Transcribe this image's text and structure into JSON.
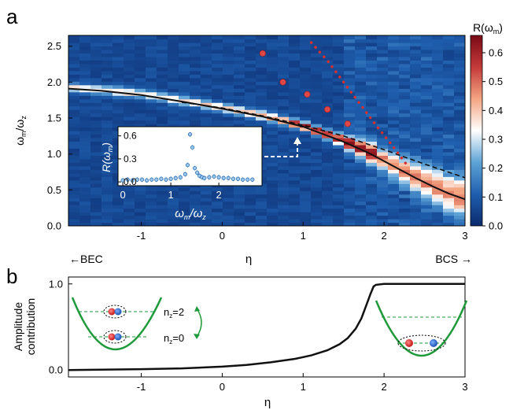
{
  "chart_data": [
    {
      "type": "heatmap",
      "panel": "a",
      "xlabel": "η",
      "ylabel_main": "ω",
      "ylabel_sub": "m",
      "ylabel_den_main": "ω",
      "ylabel_den_sub": "z",
      "x_ticks": [
        "-1",
        "0",
        "1",
        "2",
        "3"
      ],
      "x_tick_values": [
        -1,
        0,
        1,
        2,
        3
      ],
      "y_ticks": [
        "0.0",
        "0.5",
        "1.0",
        "1.5",
        "2.0",
        "2.5"
      ],
      "y_tick_values": [
        0,
        0.5,
        1.0,
        1.5,
        2.0,
        2.5
      ],
      "xlim": [
        -1.9,
        3.0
      ],
      "ylim": [
        0,
        2.65
      ],
      "left_arrow_label": "←BEC",
      "right_arrow_label": "BCS →",
      "colorbar": {
        "label_main": "R(ω",
        "label_sub": "m",
        "label_close": ")",
        "ticks": [
          "0.0",
          "0.1",
          "0.2",
          "0.3",
          "0.4",
          "0.5",
          "0.6"
        ],
        "tick_values": [
          0,
          0.1,
          0.2,
          0.3,
          0.4,
          0.5,
          0.6
        ],
        "range": [
          0,
          0.66
        ],
        "colors": [
          "#0b2a6e",
          "#1f5fae",
          "#5ea3d6",
          "#ffffff",
          "#f4a582",
          "#c43a3a",
          "#7a0a16"
        ]
      },
      "solid_curve": {
        "x": [
          -1.9,
          -1.5,
          -1.0,
          -0.5,
          0.0,
          0.5,
          1.0,
          1.5,
          1.8,
          2.0,
          2.2,
          2.4,
          2.6,
          2.8,
          3.0
        ],
        "y": [
          1.91,
          1.88,
          1.82,
          1.73,
          1.63,
          1.52,
          1.38,
          1.17,
          1.02,
          0.9,
          0.78,
          0.66,
          0.55,
          0.45,
          0.37
        ]
      },
      "dashed_curve": {
        "x": [
          -0.5,
          0.0,
          0.5,
          1.0,
          1.5,
          2.0,
          2.5,
          3.0
        ],
        "y": [
          1.72,
          1.64,
          1.53,
          1.4,
          1.25,
          1.06,
          0.86,
          0.67
        ]
      },
      "red_dots": {
        "x": [
          0.5,
          0.75,
          1.05,
          1.3,
          1.55
        ],
        "y": [
          2.4,
          2.0,
          1.83,
          1.62,
          1.42
        ]
      },
      "red_dotted_line": {
        "x": [
          1.1,
          1.3,
          1.5,
          1.7,
          1.9,
          2.1,
          2.3
        ],
        "y": [
          2.55,
          2.3,
          2.0,
          1.7,
          1.4,
          1.12,
          0.82
        ]
      },
      "inset": {
        "type": "scatter",
        "xlabel_main": "ω",
        "xlabel_sub": "m",
        "xlabel_den_main": "ω",
        "xlabel_den_sub": "z",
        "ylabel_main": "R(ω",
        "ylabel_sub": "m",
        "ylabel_close": ")",
        "x_ticks": [
          "0",
          "1",
          "2"
        ],
        "x_tick_values": [
          0,
          1,
          2
        ],
        "y_ticks": [
          "0.0",
          "0.3",
          "0.6"
        ],
        "y_tick_values": [
          0,
          0.3,
          0.6
        ],
        "xlim": [
          -0.1,
          2.9
        ],
        "ylim": [
          -0.05,
          0.72
        ],
        "x": [
          0.0,
          0.1,
          0.2,
          0.3,
          0.4,
          0.5,
          0.6,
          0.7,
          0.8,
          0.9,
          1.0,
          1.1,
          1.2,
          1.3,
          1.35,
          1.4,
          1.45,
          1.5,
          1.55,
          1.6,
          1.65,
          1.7,
          1.8,
          1.9,
          2.0,
          2.1,
          2.2,
          2.3,
          2.4,
          2.5,
          2.6,
          2.7
        ],
        "y": [
          0.02,
          0.03,
          0.02,
          0.03,
          0.03,
          0.02,
          0.03,
          0.03,
          0.04,
          0.03,
          0.04,
          0.05,
          0.06,
          0.1,
          0.22,
          0.62,
          0.45,
          0.18,
          0.12,
          0.08,
          0.06,
          0.05,
          0.06,
          0.07,
          0.06,
          0.05,
          0.05,
          0.04,
          0.04,
          0.03,
          0.03,
          0.03
        ]
      }
    },
    {
      "type": "line",
      "panel": "b",
      "xlabel": "η",
      "ylabel_line1": "Amplitude",
      "ylabel_line2": "contribution",
      "x_ticks": [
        "-1",
        "0",
        "1",
        "2",
        "3"
      ],
      "x_tick_values": [
        -1,
        0,
        1,
        2,
        3
      ],
      "y_ticks": [
        "0.0",
        "1.0"
      ],
      "y_tick_values": [
        0,
        1
      ],
      "xlim": [
        -1.9,
        3.0
      ],
      "ylim": [
        -0.08,
        1.08
      ],
      "series": [
        {
          "x": [
            -1.9,
            -1.5,
            -1.0,
            -0.5,
            0.0,
            0.3,
            0.6,
            0.9,
            1.1,
            1.3,
            1.45,
            1.55,
            1.65,
            1.72,
            1.78,
            1.83,
            1.87,
            1.9,
            2.0,
            2.5,
            3.0
          ],
          "y": [
            0.0,
            0.005,
            0.01,
            0.02,
            0.04,
            0.06,
            0.09,
            0.13,
            0.17,
            0.23,
            0.3,
            0.37,
            0.48,
            0.6,
            0.75,
            0.88,
            0.97,
            0.99,
            1.0,
            1.0,
            1.0
          ]
        }
      ],
      "annotations": {
        "nz2_main": "n",
        "nz2_sub": "z",
        "nz2_value": "=2",
        "nz0_main": "n",
        "nz0_sub": "z",
        "nz0_value": "=0"
      }
    }
  ],
  "labels": {
    "panel_a": "a",
    "panel_b": "b"
  }
}
